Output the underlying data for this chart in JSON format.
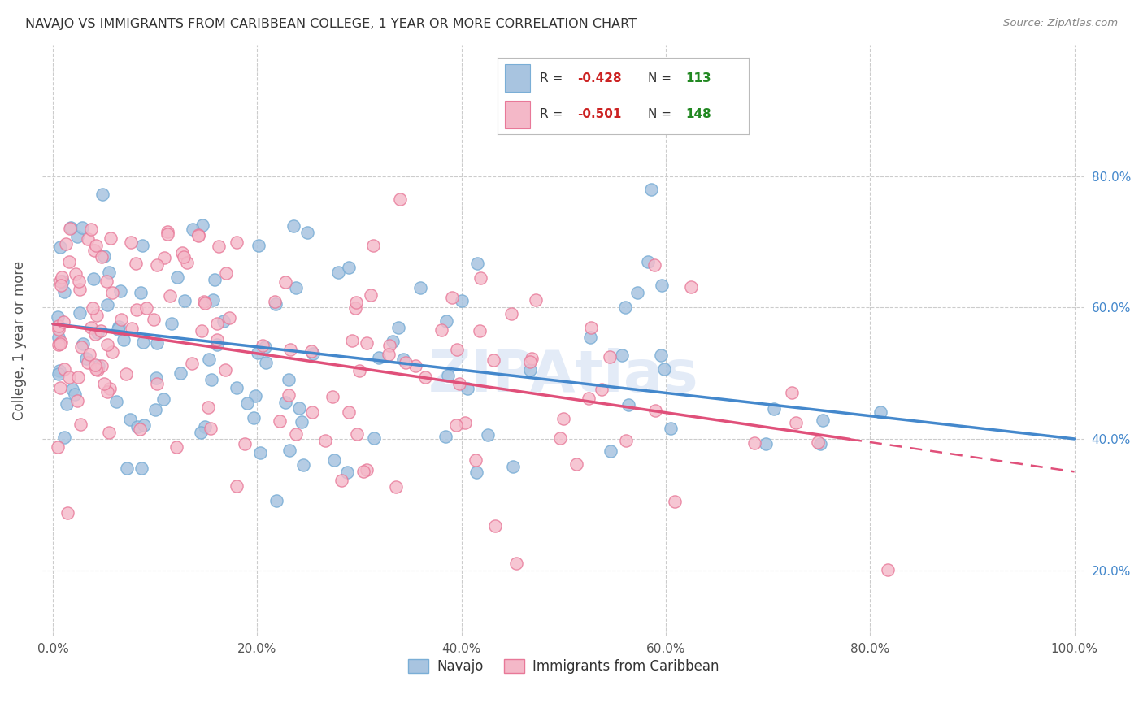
{
  "title": "NAVAJO VS IMMIGRANTS FROM CARIBBEAN COLLEGE, 1 YEAR OR MORE CORRELATION CHART",
  "source": "Source: ZipAtlas.com",
  "ylabel": "College, 1 year or more",
  "blue_color": "#a8c4e0",
  "blue_edge_color": "#7aaed6",
  "pink_color": "#f4b8c8",
  "pink_edge_color": "#e87898",
  "blue_line_color": "#4488cc",
  "pink_line_color": "#e0507a",
  "blue_label": "Navajo",
  "pink_label": "Immigrants from Caribbean",
  "R_blue": -0.428,
  "N_blue": 113,
  "R_pink": -0.501,
  "N_pink": 148,
  "legend_text_color": "#333333",
  "legend_R_color": "#cc2222",
  "legend_N_color": "#228822",
  "title_color": "#333333",
  "source_color": "#888888",
  "axis_label_color": "#555555",
  "right_tick_color": "#4488cc",
  "left_tick_color": "#4488cc",
  "watermark": "ZIPAtlas",
  "watermark_color": "#c8d8f0",
  "background_color": "#ffffff",
  "grid_color": "#cccccc",
  "xlim": [
    -0.01,
    1.01
  ],
  "ylim": [
    0.1,
    1.0
  ],
  "xtick_vals": [
    0.0,
    0.2,
    0.4,
    0.6,
    0.8,
    1.0
  ],
  "xtick_labels": [
    "0.0%",
    "20.0%",
    "40.0%",
    "60.0%",
    "80.0%",
    "100.0%"
  ],
  "ytick_vals": [
    0.2,
    0.4,
    0.6,
    0.8
  ],
  "ytick_labels": [
    "20.0%",
    "40.0%",
    "60.0%",
    "80.0%"
  ],
  "blue_intercept": 0.575,
  "blue_slope": -0.175,
  "pink_intercept": 0.575,
  "pink_slope": -0.225
}
